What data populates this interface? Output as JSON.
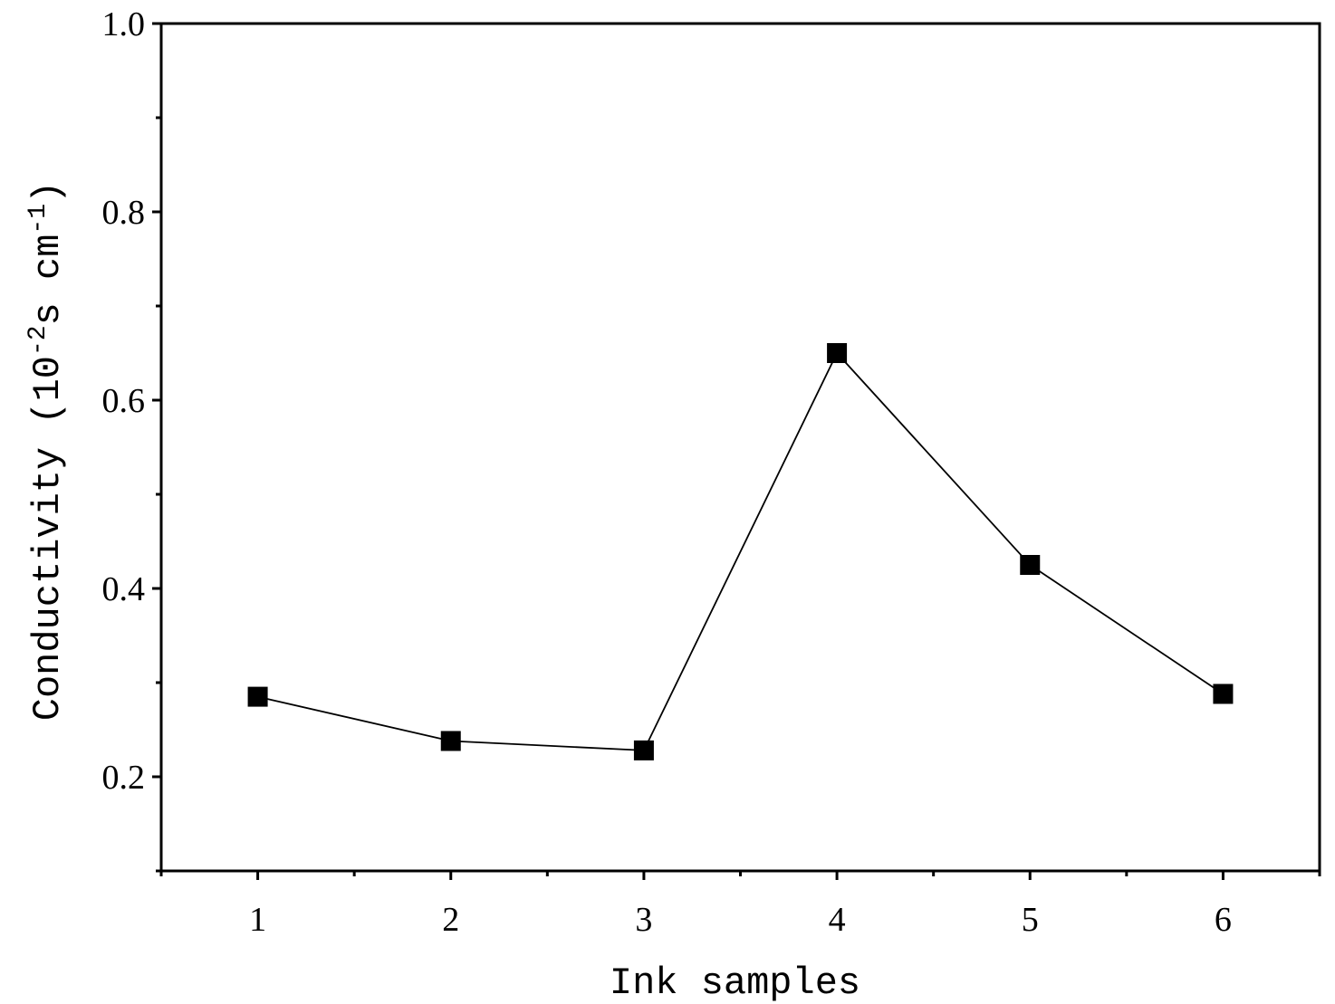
{
  "chart_data": {
    "type": "line",
    "xlabel": "Ink samples",
    "ylabel": {
      "text": "Conductivity (10",
      "sup1": "-2",
      "mid": "s cm",
      "sup2": "-1",
      "end": ")"
    },
    "xlim": [
      0.5,
      6.5
    ],
    "ylim": [
      0.1,
      1.0
    ],
    "x_ticks": [
      1,
      2,
      3,
      4,
      5,
      6
    ],
    "x_tick_labels": [
      "1",
      "2",
      "3",
      "4",
      "5",
      "6"
    ],
    "y_ticks": [
      0.2,
      0.4,
      0.6,
      0.8,
      1.0
    ],
    "y_tick_labels": [
      "0.2",
      "0.4",
      "0.6",
      "0.8",
      "1.0"
    ],
    "grid": false,
    "series": [
      {
        "marker": "square",
        "color": "#000000",
        "x": [
          1,
          2,
          3,
          4,
          5,
          6
        ],
        "y": [
          0.285,
          0.238,
          0.228,
          0.65,
          0.425,
          0.288
        ]
      }
    ]
  }
}
